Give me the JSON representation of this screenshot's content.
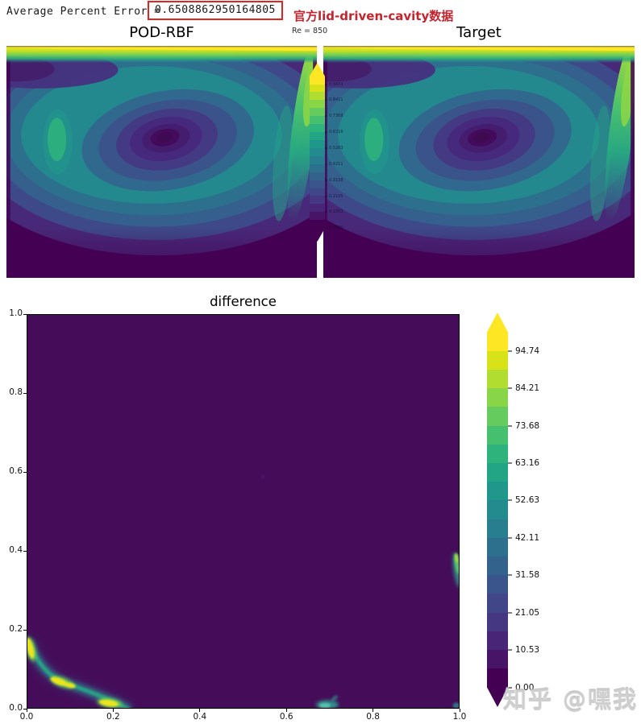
{
  "header": {
    "error_label": "Average Percent Error =",
    "error_value": "0.6508862950164805",
    "annotation": "官方lid-driven-cavity数据",
    "re_label": "Re = 850"
  },
  "top_row": {
    "left_title": "POD-RBF",
    "right_title": "Target",
    "colorbar_ticks": [
      "0.9474",
      "0.8421",
      "0.7368",
      "0.6316",
      "0.5263",
      "0.4211",
      "0.3158",
      "0.2105",
      "0.1053",
      "0.0000"
    ]
  },
  "difference": {
    "title": "difference",
    "x_tick_labels": [
      "0.0",
      "0.2",
      "0.4",
      "0.6",
      "0.8",
      "1.0"
    ],
    "y_tick_labels": [
      "1.0",
      "0.8",
      "0.6",
      "0.4",
      "0.2",
      "0.0"
    ],
    "colorbar_ticks": [
      "94.74",
      "84.21",
      "73.68",
      "63.16",
      "52.63",
      "42.11",
      "31.58",
      "21.05",
      "10.53",
      "0.00"
    ]
  },
  "watermark": "知乎 @嘿我",
  "colors": {
    "annotation_red": "#c5232e",
    "box_red": "#e0241f",
    "viridis_min": "#440154",
    "viridis_max": "#fde725",
    "viridis_bands": [
      "#440154",
      "#481467",
      "#482576",
      "#453781",
      "#404688",
      "#39558c",
      "#33638d",
      "#2d708e",
      "#287d8e",
      "#238a8d",
      "#1f978b",
      "#21a585",
      "#2eb37c",
      "#46c06f",
      "#65cb5e",
      "#89d548",
      "#b0dd2f",
      "#d8e219",
      "#fde725"
    ]
  },
  "chart_data": [
    {
      "type": "heatmap",
      "title": "POD-RBF",
      "subtitle": "Re = 850",
      "field": "lid-driven cavity velocity magnitude, filled contours (viridis)",
      "value_range": [
        0.0,
        1.0
      ],
      "colorbar_ticks": [
        0.9474,
        0.8421,
        0.7368,
        0.6316,
        0.5263,
        0.4211,
        0.3158,
        0.2105,
        0.1053,
        0.0
      ],
      "features": [
        "bright high-speed band along moving lid at top (~1.0)",
        "high-speed green band descending along right wall",
        "primary vortex with dark low-speed core near (0.52, 0.58)",
        "teal recirculation ring around the vortex",
        "dark low-speed fluid along bottom and lower corners"
      ]
    },
    {
      "type": "heatmap",
      "title": "Target",
      "subtitle": "Re = 850",
      "field": "lid-driven cavity velocity magnitude, filled contours (viridis)",
      "value_range": [
        0.0,
        1.0
      ],
      "colorbar_ticks": [
        0.9474,
        0.8421,
        0.7368,
        0.6316,
        0.5263,
        0.4211,
        0.3158,
        0.2105,
        0.1053,
        0.0
      ],
      "features": [
        "visually identical to POD-RBF prediction"
      ]
    },
    {
      "type": "heatmap",
      "title": "difference",
      "xlabel": "",
      "ylabel": "",
      "xlim": [
        0.0,
        1.0
      ],
      "ylim": [
        0.0,
        1.0
      ],
      "x_ticks": [
        0.0,
        0.2,
        0.4,
        0.6,
        0.8,
        1.0
      ],
      "y_ticks": [
        0.0,
        0.2,
        0.4,
        0.6,
        0.8,
        1.0
      ],
      "colorbar_ticks": [
        94.74,
        84.21,
        73.68,
        63.16,
        52.63,
        42.11,
        31.58,
        21.05,
        10.53,
        0.0
      ],
      "background_value": 0,
      "hotspots": [
        {
          "x": 0.01,
          "y": 0.15,
          "value": "~95-100",
          "note": "yellow spot on diagonal streak at left wall"
        },
        {
          "x": 0.08,
          "y": 0.07,
          "value": "~95-100",
          "note": "yellow spot mid-streak"
        },
        {
          "x": 0.2,
          "y": 0.01,
          "value": "~95-100",
          "note": "yellow spot where streak meets bottom wall"
        },
        {
          "x": 0.7,
          "y": 0.01,
          "value": "~30",
          "note": "small teal blob on bottom wall"
        },
        {
          "x": 1.0,
          "y": 0.35,
          "value": "~70",
          "note": "green streak on right wall"
        },
        {
          "x": 1.0,
          "y": 0.01,
          "value": "~25",
          "note": "tiny teal dot bottom-right corner"
        }
      ],
      "description": "percent error between POD-RBF and Target; near zero everywhere except a curved streak from (0,0.17) to (0.23,0) in the bottom-left corner"
    }
  ]
}
